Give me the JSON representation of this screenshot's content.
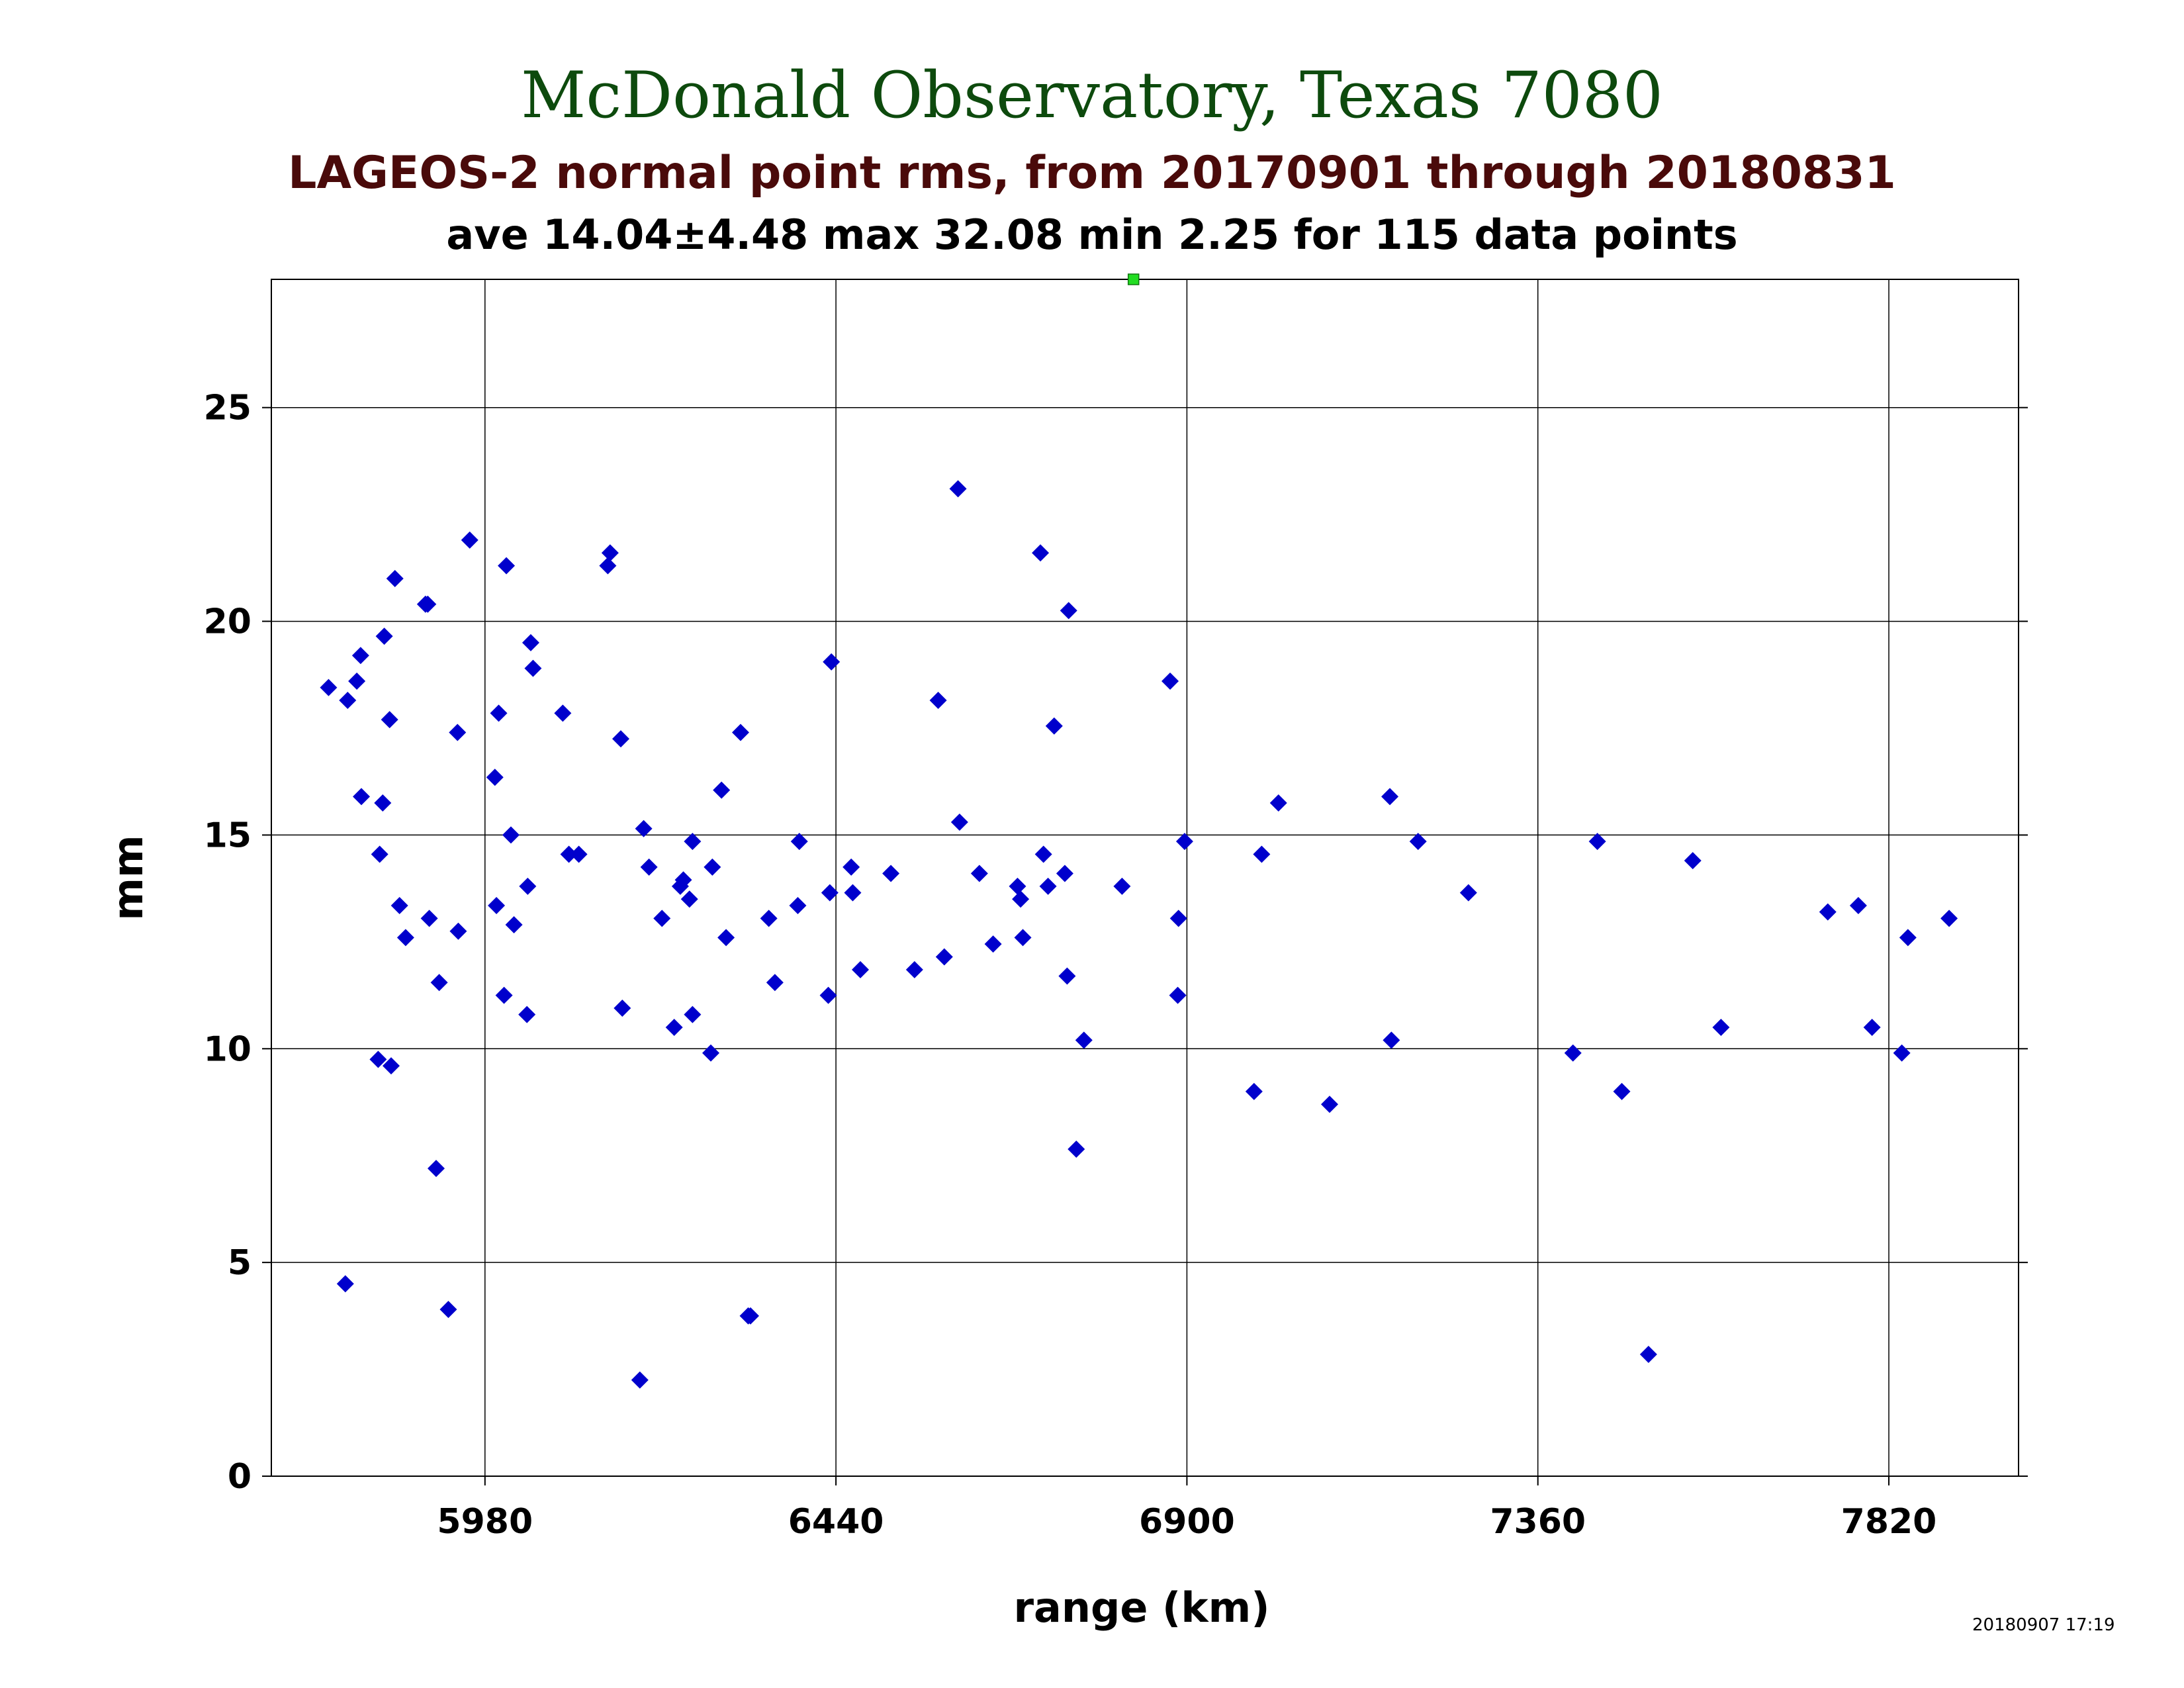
{
  "chart_data": {
    "type": "scatter",
    "title": "McDonald Observatory, Texas 7080",
    "subtitle": "LAGEOS-2 normal point rms, from 20170901 through 20180831",
    "stats": "ave 14.04±4.48 max 32.08 min 2.25 for 115 data points",
    "xlabel": "range (km)",
    "ylabel": "mm",
    "timestamp": "20180907 17:19",
    "xlim": [
      5700,
      7990
    ],
    "ylim": [
      0,
      28
    ],
    "x_ticks": [
      5980,
      6440,
      6900,
      7360,
      7820
    ],
    "y_ticks": [
      0,
      5,
      10,
      15,
      20,
      25
    ],
    "grid": true,
    "colors": {
      "points": "#0000cc",
      "outlier": "#22dd22",
      "grid": "#000000"
    },
    "outlier_marker": {
      "x": 6830,
      "y": 28,
      "note_value_max": 32.08
    },
    "points": [
      {
        "x": 5775,
        "y": 18.45
      },
      {
        "x": 5797,
        "y": 4.5
      },
      {
        "x": 5800,
        "y": 18.15
      },
      {
        "x": 5812,
        "y": 18.6
      },
      {
        "x": 5817,
        "y": 19.2
      },
      {
        "x": 5818,
        "y": 15.9
      },
      {
        "x": 5840,
        "y": 9.75
      },
      {
        "x": 5842,
        "y": 14.55
      },
      {
        "x": 5846,
        "y": 15.75
      },
      {
        "x": 5848,
        "y": 19.65
      },
      {
        "x": 5855,
        "y": 17.7
      },
      {
        "x": 5857,
        "y": 9.6
      },
      {
        "x": 5862,
        "y": 21.0
      },
      {
        "x": 5868,
        "y": 13.35
      },
      {
        "x": 5876,
        "y": 12.6
      },
      {
        "x": 5902,
        "y": 20.4
      },
      {
        "x": 5905,
        "y": 20.4
      },
      {
        "x": 5907,
        "y": 13.05
      },
      {
        "x": 5916,
        "y": 7.2
      },
      {
        "x": 5920,
        "y": 11.55
      },
      {
        "x": 5932,
        "y": 3.9
      },
      {
        "x": 5944,
        "y": 17.4
      },
      {
        "x": 5945,
        "y": 12.75
      },
      {
        "x": 5960,
        "y": 21.9
      },
      {
        "x": 5993,
        "y": 16.35
      },
      {
        "x": 5995,
        "y": 13.35
      },
      {
        "x": 5998,
        "y": 17.85
      },
      {
        "x": 6005,
        "y": 11.25
      },
      {
        "x": 6008,
        "y": 21.3
      },
      {
        "x": 6014,
        "y": 15.0
      },
      {
        "x": 6018,
        "y": 12.9
      },
      {
        "x": 6035,
        "y": 10.8
      },
      {
        "x": 6036,
        "y": 13.8
      },
      {
        "x": 6040,
        "y": 19.5
      },
      {
        "x": 6043,
        "y": 18.9
      },
      {
        "x": 6082,
        "y": 17.85
      },
      {
        "x": 6090,
        "y": 14.55
      },
      {
        "x": 6103,
        "y": 14.55
      },
      {
        "x": 6141,
        "y": 21.3
      },
      {
        "x": 6144,
        "y": 21.6
      },
      {
        "x": 6158,
        "y": 17.25
      },
      {
        "x": 6160,
        "y": 10.95
      },
      {
        "x": 6183,
        "y": 2.25
      },
      {
        "x": 6188,
        "y": 15.15
      },
      {
        "x": 6195,
        "y": 14.25
      },
      {
        "x": 6212,
        "y": 13.05
      },
      {
        "x": 6228,
        "y": 10.5
      },
      {
        "x": 6236,
        "y": 13.8
      },
      {
        "x": 6240,
        "y": 13.95
      },
      {
        "x": 6248,
        "y": 13.5
      },
      {
        "x": 6252,
        "y": 14.85
      },
      {
        "x": 6252,
        "y": 10.8
      },
      {
        "x": 6276,
        "y": 9.9
      },
      {
        "x": 6278,
        "y": 14.25
      },
      {
        "x": 6290,
        "y": 16.05
      },
      {
        "x": 6296,
        "y": 12.6
      },
      {
        "x": 6315,
        "y": 17.4
      },
      {
        "x": 6325,
        "y": 3.75
      },
      {
        "x": 6328,
        "y": 3.75
      },
      {
        "x": 6352,
        "y": 13.05
      },
      {
        "x": 6360,
        "y": 11.55
      },
      {
        "x": 6390,
        "y": 13.35
      },
      {
        "x": 6392,
        "y": 14.85
      },
      {
        "x": 6430,
        "y": 11.25
      },
      {
        "x": 6432,
        "y": 13.65
      },
      {
        "x": 6434,
        "y": 19.05
      },
      {
        "x": 6460,
        "y": 14.25
      },
      {
        "x": 6462,
        "y": 13.65
      },
      {
        "x": 6472,
        "y": 11.85
      },
      {
        "x": 6512,
        "y": 14.1
      },
      {
        "x": 6543,
        "y": 11.85
      },
      {
        "x": 6574,
        "y": 18.15
      },
      {
        "x": 6582,
        "y": 12.15
      },
      {
        "x": 6600,
        "y": 23.1
      },
      {
        "x": 6602,
        "y": 15.3
      },
      {
        "x": 6628,
        "y": 14.1
      },
      {
        "x": 6646,
        "y": 12.45
      },
      {
        "x": 6678,
        "y": 13.8
      },
      {
        "x": 6682,
        "y": 13.5
      },
      {
        "x": 6685,
        "y": 12.6
      },
      {
        "x": 6708,
        "y": 21.6
      },
      {
        "x": 6712,
        "y": 14.55
      },
      {
        "x": 6718,
        "y": 13.8
      },
      {
        "x": 6726,
        "y": 17.55
      },
      {
        "x": 6740,
        "y": 14.1
      },
      {
        "x": 6743,
        "y": 11.7
      },
      {
        "x": 6745,
        "y": 20.25
      },
      {
        "x": 6755,
        "y": 7.65
      },
      {
        "x": 6765,
        "y": 10.2
      },
      {
        "x": 6815,
        "y": 13.8
      },
      {
        "x": 6878,
        "y": 18.6
      },
      {
        "x": 6888,
        "y": 11.25
      },
      {
        "x": 6889,
        "y": 13.05
      },
      {
        "x": 6897,
        "y": 14.85
      },
      {
        "x": 6988,
        "y": 9.0
      },
      {
        "x": 6998,
        "y": 14.55
      },
      {
        "x": 7020,
        "y": 15.75
      },
      {
        "x": 7087,
        "y": 8.7
      },
      {
        "x": 7166,
        "y": 15.9
      },
      {
        "x": 7168,
        "y": 10.2
      },
      {
        "x": 7203,
        "y": 14.85
      },
      {
        "x": 7269,
        "y": 13.65
      },
      {
        "x": 7406,
        "y": 9.9
      },
      {
        "x": 7438,
        "y": 14.85
      },
      {
        "x": 7470,
        "y": 9.0
      },
      {
        "x": 7505,
        "y": 2.85
      },
      {
        "x": 7563,
        "y": 14.4
      },
      {
        "x": 7600,
        "y": 10.5
      },
      {
        "x": 7740,
        "y": 13.2
      },
      {
        "x": 7780,
        "y": 13.35
      },
      {
        "x": 7798,
        "y": 10.5
      },
      {
        "x": 7837,
        "y": 9.9
      },
      {
        "x": 7845,
        "y": 12.6
      },
      {
        "x": 7899,
        "y": 13.05
      }
    ]
  }
}
